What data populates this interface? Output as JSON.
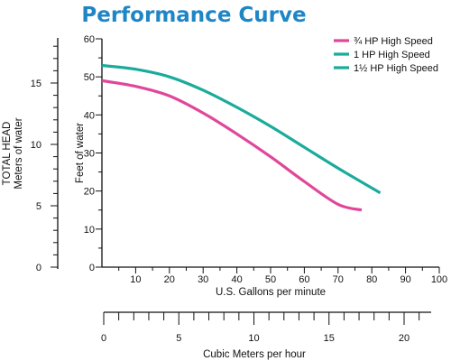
{
  "chart_data": {
    "type": "line",
    "title": "Performance Curve",
    "x": [
      0,
      10,
      20,
      30,
      40,
      50,
      60,
      70,
      80
    ],
    "xlabel": "U.S. Gallons per minute",
    "xlim": [
      0,
      100
    ],
    "xticks": [
      "10",
      "20",
      "30",
      "40",
      "50",
      "60",
      "70",
      "80",
      "90",
      "100"
    ],
    "ylabel": "Feet of water",
    "ylim": [
      0,
      60
    ],
    "yticks": [
      "0",
      "10",
      "20",
      "30",
      "40",
      "50",
      "60"
    ],
    "secondary_y": {
      "label": "TOTAL HEAD",
      "sublabel": "Meters of water",
      "ticks": [
        "0",
        "5",
        "10",
        "15"
      ]
    },
    "secondary_x": {
      "label": "Cubic Meters per hour",
      "ticks": [
        "0",
        "5",
        "10",
        "15",
        "20"
      ]
    },
    "legend_position": "top-right",
    "grid": false,
    "series": [
      {
        "name": "¾ HP High Speed",
        "color": "#e0479a",
        "points": [
          [
            0,
            49
          ],
          [
            10,
            47.5
          ],
          [
            20,
            45
          ],
          [
            30,
            40.5
          ],
          [
            40,
            35
          ],
          [
            50,
            29
          ],
          [
            60,
            22.5
          ],
          [
            70,
            16.5
          ],
          [
            77,
            15
          ]
        ]
      },
      {
        "name": "1 HP High Speed",
        "color": "#1aab9b",
        "points": [
          [
            0,
            53
          ],
          [
            10,
            52
          ],
          [
            20,
            50
          ],
          [
            30,
            46.5
          ],
          [
            40,
            42
          ],
          [
            50,
            37
          ],
          [
            60,
            31.5
          ],
          [
            70,
            26
          ],
          [
            82.5,
            19.5
          ]
        ]
      },
      {
        "name": "1½ HP High Speed",
        "color": "#1aab9b",
        "points": []
      }
    ]
  }
}
